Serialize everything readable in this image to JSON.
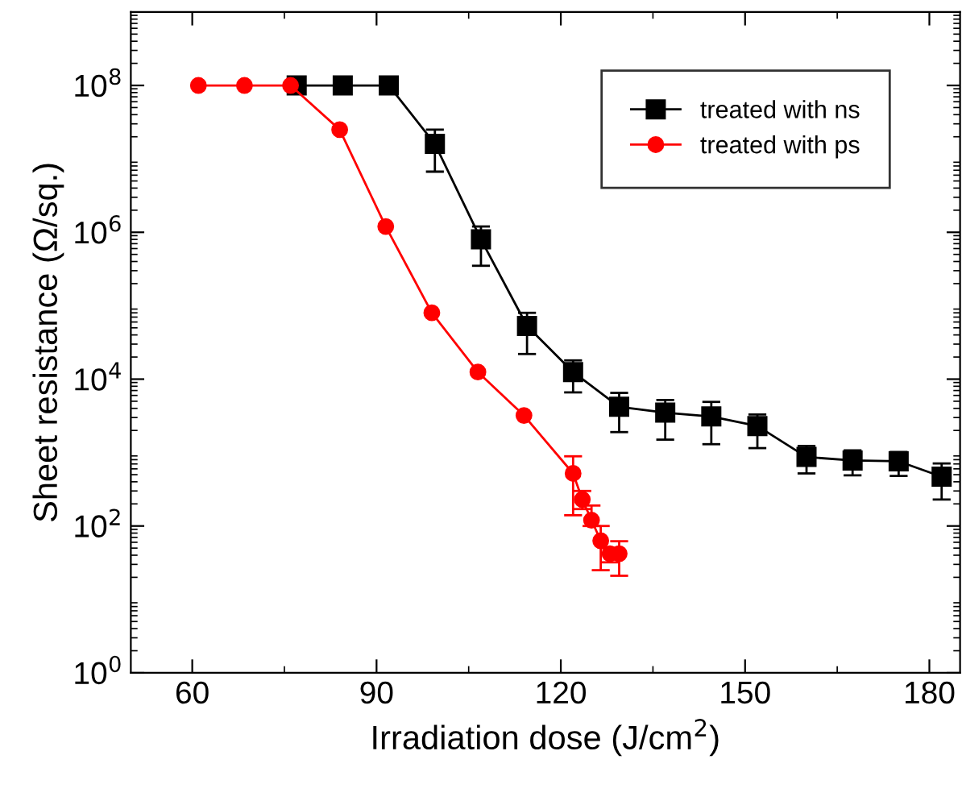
{
  "chart_data": {
    "type": "line",
    "xlabel": "Irradiation dose (J/cm$^{2}$)",
    "ylabel": "Sheet resistance (Ω/sq.)",
    "log": "y",
    "xlim": [
      50,
      185
    ],
    "xticks": [
      60,
      90,
      120,
      150,
      180
    ],
    "ylim": [
      1,
      1000000000.0
    ],
    "yticks": [
      {
        "value": 1,
        "label": "10$^{0}$"
      },
      {
        "value": 100,
        "label": "10$^{2}$"
      },
      {
        "value": 10000,
        "label": "10$^{4}$"
      },
      {
        "value": 1000000,
        "label": "10$^{6}$"
      },
      {
        "value": 100000000,
        "label": "10$^{8}$"
      }
    ],
    "grid": false,
    "legend": "top right",
    "line_style": "solid",
    "series": [
      {
        "name": "treated with ns",
        "color": "#000000",
        "marker": "square",
        "x": [
          77,
          84.5,
          92,
          99.5,
          107,
          114.5,
          122,
          129.5,
          137,
          144.5,
          152,
          160,
          167.5,
          175,
          182
        ],
        "values": [
          100000000.0,
          100000000.0,
          100000000.0,
          16000000.0,
          800000.0,
          53000.0,
          12500.0,
          4200,
          3500,
          3100,
          2300,
          870,
          780,
          760,
          470
        ],
        "errors": [
          null,
          null,
          null,
          [
            6700000.0,
            25000000.0
          ],
          [
            350000.0,
            1200000.0
          ],
          [
            22000.0,
            80000.0
          ],
          [
            6600,
            18000.0
          ],
          [
            1900,
            6500
          ],
          [
            1500,
            5200
          ],
          [
            1300,
            4900
          ],
          [
            1150,
            3300
          ],
          [
            520,
            1230
          ],
          [
            490,
            1070
          ],
          [
            480,
            1020
          ],
          [
            230,
            710
          ]
        ]
      },
      {
        "name": "treated with ps",
        "color": "#ff0000",
        "marker": "circle",
        "x": [
          61,
          68.5,
          76,
          84,
          91.5,
          99,
          106.5,
          114,
          122,
          123.5,
          125,
          126.5,
          128,
          129.5
        ],
        "values": [
          100000000.0,
          100000000.0,
          100000000.0,
          25000000.0,
          1200000.0,
          80000.0,
          12500.0,
          3200,
          520,
          230,
          120,
          63,
          42,
          42
        ],
        "errors": [
          null,
          null,
          null,
          null,
          null,
          null,
          null,
          null,
          [
            140,
            890
          ],
          [
            170,
            300
          ],
          [
            100,
            190
          ],
          [
            25,
            100
          ],
          [
            32,
            50
          ],
          [
            21,
            62
          ]
        ]
      }
    ]
  }
}
